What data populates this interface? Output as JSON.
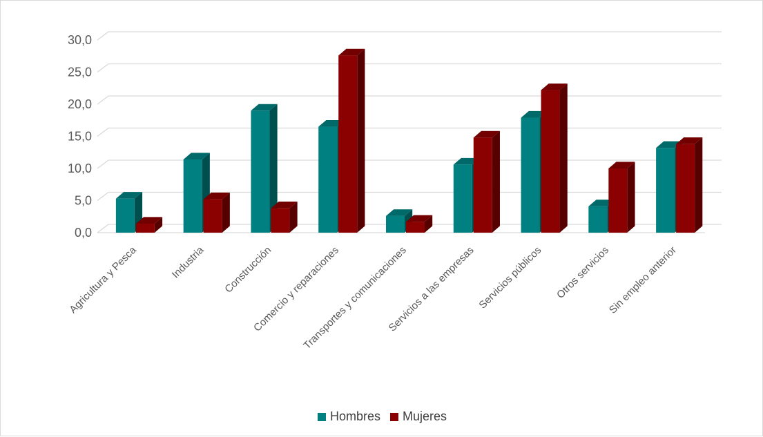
{
  "chart_data": {
    "type": "bar",
    "style": "3d-clustered-column",
    "title": "",
    "xlabel": "",
    "ylabel": "",
    "ylim": [
      0,
      30
    ],
    "y_ticks": [
      "0,0",
      "5,0",
      "10,0",
      "15,0",
      "20,0",
      "25,0",
      "30,0"
    ],
    "grid": true,
    "legend_position": "bottom",
    "categories": [
      "Agricultura y Pesca",
      "Industria",
      "Construcción",
      "Comercio y reparaciones",
      "Transportes y comunicaciones",
      "Servicios a las empresas",
      "Servicios públicos",
      "Otros servicios",
      "Sin empleo anterior"
    ],
    "series": [
      {
        "name": "Hombres",
        "color": "#008080",
        "values": [
          5.3,
          11.4,
          19.0,
          16.5,
          2.6,
          10.6,
          17.9,
          4.1,
          13.2
        ]
      },
      {
        "name": "Mujeres",
        "color": "#8B0000",
        "values": [
          1.4,
          5.2,
          3.8,
          27.6,
          1.7,
          14.8,
          22.2,
          10.0,
          13.8
        ]
      }
    ]
  }
}
